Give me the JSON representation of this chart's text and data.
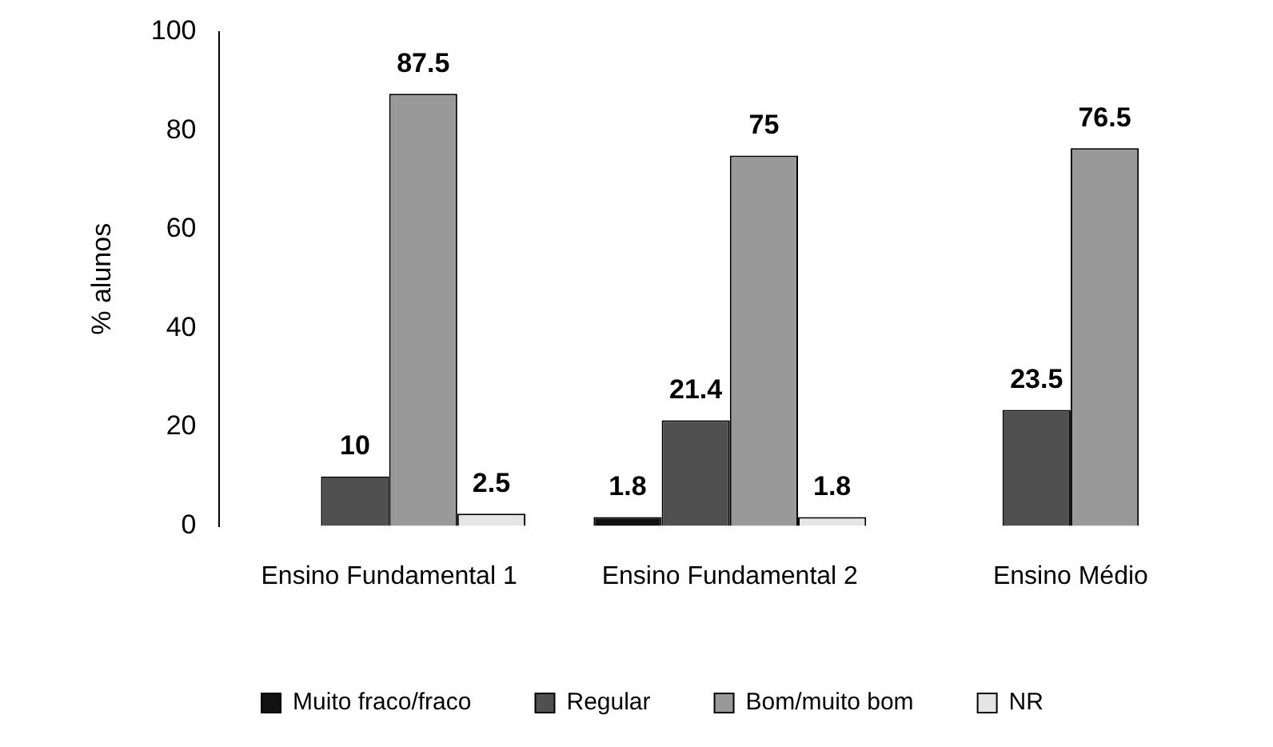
{
  "chart_data": {
    "type": "bar",
    "ylabel": "% alunos",
    "categories": [
      "Ensino Fundamental 1",
      "Ensino Fundamental 2",
      "Ensino Médio"
    ],
    "series": [
      {
        "name": "Muito fraco/fraco",
        "color": "#111111",
        "values": [
          0,
          1.8,
          0
        ],
        "value_labels": [
          null,
          "1.8",
          null
        ]
      },
      {
        "name": "Regular",
        "color": "#505050",
        "values": [
          10,
          21.4,
          23.5
        ],
        "value_labels": [
          "10",
          "21.4",
          "23.5"
        ]
      },
      {
        "name": "Bom/muito bom",
        "color": "#999999",
        "values": [
          87.5,
          75,
          76.5
        ],
        "value_labels": [
          "87.5",
          "75",
          "76.5"
        ]
      },
      {
        "name": "NR",
        "color": "#e5e5e5",
        "values": [
          2.5,
          1.8,
          0
        ],
        "value_labels": [
          "2.5",
          "1.8",
          null
        ]
      }
    ],
    "ylim": [
      0,
      100
    ],
    "yticks": [
      0,
      20,
      40,
      60,
      80,
      100
    ],
    "grid": false,
    "legend": "bottom"
  }
}
